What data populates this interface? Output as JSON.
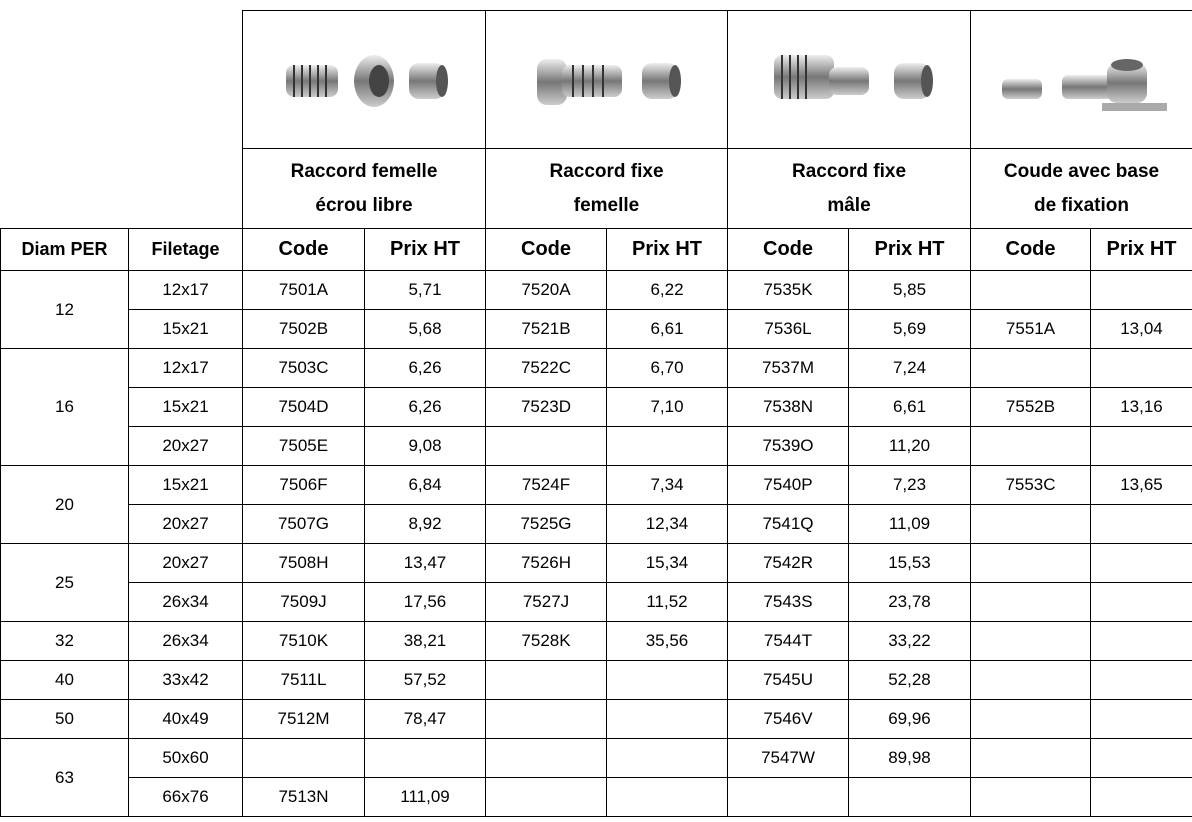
{
  "products": [
    {
      "lines": [
        "Raccord femelle",
        "écrou libre"
      ]
    },
    {
      "lines": [
        "Raccord fixe",
        "femelle"
      ]
    },
    {
      "lines": [
        "Raccord fixe",
        "mâle"
      ]
    },
    {
      "lines": [
        "Coude avec base",
        "de fixation"
      ]
    }
  ],
  "header": [
    "Diam PER",
    "Filetage",
    "Code",
    "Prix HT",
    "Code",
    "Prix HT",
    "Code",
    "Prix HT",
    "Code",
    "Prix HT"
  ],
  "groups": [
    {
      "diam": "12",
      "rows": [
        [
          "12x17",
          "7501A",
          "5,71",
          "7520A",
          "6,22",
          "7535K",
          "5,85",
          null,
          null
        ],
        [
          "15x21",
          "7502B",
          "5,68",
          "7521B",
          "6,61",
          "7536L",
          "5,69",
          "7551A",
          "13,04"
        ]
      ]
    },
    {
      "diam": "16",
      "rows": [
        [
          "12x17",
          "7503C",
          "6,26",
          "7522C",
          "6,70",
          "7537M",
          "7,24",
          null,
          null
        ],
        [
          "15x21",
          "7504D",
          "6,26",
          "7523D",
          "7,10",
          "7538N",
          "6,61",
          "7552B",
          "13,16"
        ],
        [
          "20x27",
          "7505E",
          "9,08",
          null,
          null,
          "7539O",
          "11,20",
          null,
          null
        ]
      ]
    },
    {
      "diam": "20",
      "rows": [
        [
          "15x21",
          "7506F",
          "6,84",
          "7524F",
          "7,34",
          "7540P",
          "7,23",
          "7553C",
          "13,65"
        ],
        [
          "20x27",
          "7507G",
          "8,92",
          "7525G",
          "12,34",
          "7541Q",
          "11,09",
          null,
          null
        ]
      ]
    },
    {
      "diam": "25",
      "rows": [
        [
          "20x27",
          "7508H",
          "13,47",
          "7526H",
          "15,34",
          "7542R",
          "15,53",
          null,
          null
        ],
        [
          "26x34",
          "7509J",
          "17,56",
          "7527J",
          "11,52",
          "7543S",
          "23,78",
          null,
          null
        ]
      ]
    },
    {
      "diam": "32",
      "rows": [
        [
          "26x34",
          "7510K",
          "38,21",
          "7528K",
          "35,56",
          "7544T",
          "33,22",
          null,
          null
        ]
      ]
    },
    {
      "diam": "40",
      "rows": [
        [
          "33x42",
          "7511L",
          "57,52",
          null,
          null,
          "7545U",
          "52,28",
          null,
          null
        ]
      ]
    },
    {
      "diam": "50",
      "rows": [
        [
          "40x49",
          "7512M",
          "78,47",
          null,
          null,
          "7546V",
          "69,96",
          null,
          null
        ]
      ]
    },
    {
      "diam": "63",
      "rows": [
        [
          "50x60",
          null,
          null,
          null,
          null,
          "7547W",
          "89,98",
          null,
          null
        ],
        [
          "66x76",
          "7513N",
          "111,09",
          null,
          null,
          null,
          null,
          null,
          null
        ]
      ]
    }
  ]
}
